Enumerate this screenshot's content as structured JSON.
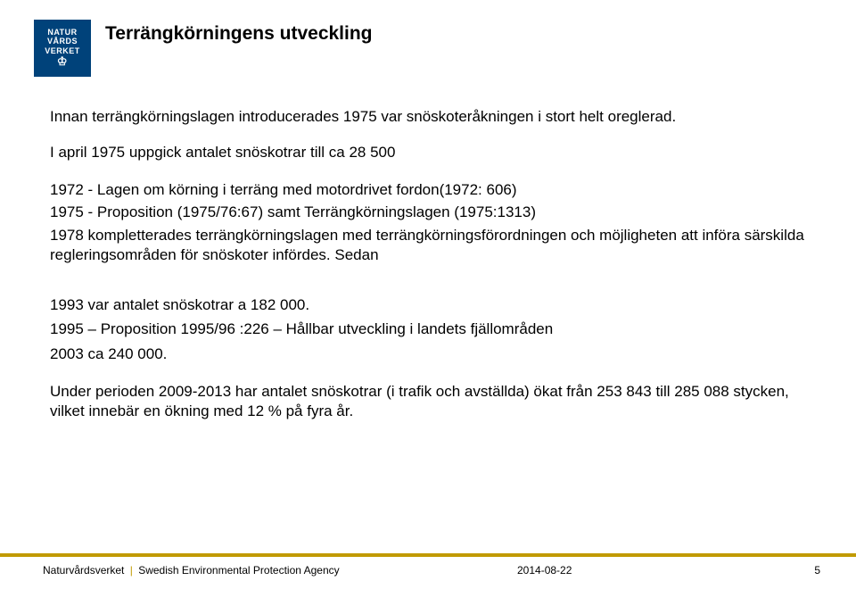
{
  "logo": {
    "line1": "NATUR",
    "line2": "VÅRDS",
    "line3": "VERKET",
    "bg_color": "#00427a",
    "text_color": "#ffffff"
  },
  "title": "Terrängkörningens utveckling",
  "body": {
    "intro": "Innan terrängkörningslagen introducerades 1975 var snöskoteråkningen i stort helt oreglerad.",
    "april1975": "I april 1975  uppgick antalet snöskotrar till ca 28 500",
    "y1972": "1972   - Lagen om körning i terräng med motordrivet fordon(1972: 606)",
    "y1975": "1975  -  Proposition (1975/76:67) samt Terrängkörningslagen (1975:1313)",
    "y1978": "1978 kompletterades terrängkörningslagen med terrängkörningsförordningen och  möjligheten att införa särskilda regleringsområden för snöskoter infördes. Sedan",
    "y1993": "1993 var antalet snöskotrar a 182 000.",
    "y1995": "1995 – Proposition 1995/96 :226 – Hållbar utveckling i landets fjällområden",
    "y2003": "2003  ca 240 000.",
    "under": "Under perioden 2009-2013 har antalet snöskotrar (i trafik och avställda) ökat från 253 843 till 285 088 stycken, vilket innebär en ökning med 12 % på fyra år."
  },
  "footer": {
    "org_sv": "Naturvårdsverket",
    "org_en": "Swedish Environmental Protection Agency",
    "date": "2014-08-22",
    "page": "5",
    "rule_color": "#c19a00"
  }
}
